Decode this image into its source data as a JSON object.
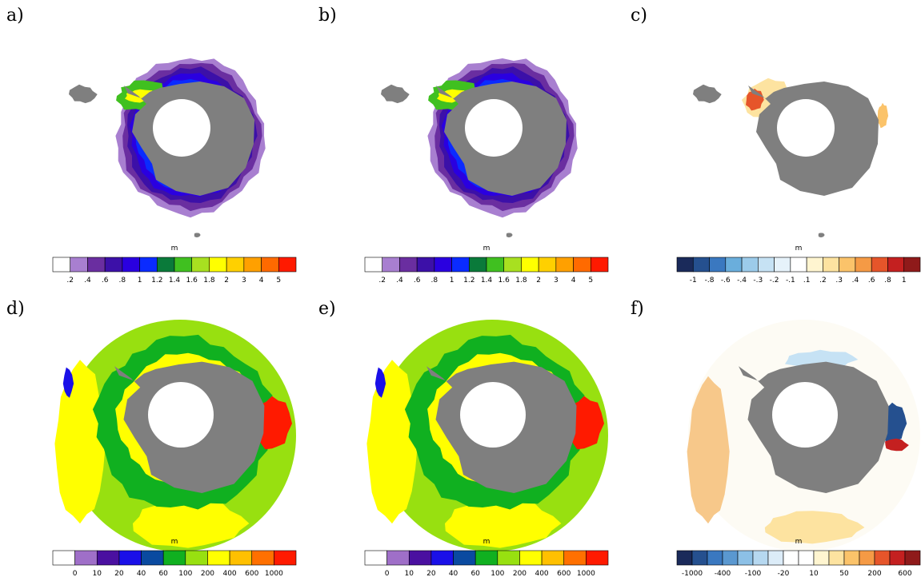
{
  "panels": [
    {
      "label": "a)",
      "colorbar": {
        "unit": "m",
        "labels": [
          ".2",
          ".4",
          ".6",
          ".8",
          "1",
          "1.2",
          "1.4",
          "1.6",
          "1.8",
          "2",
          "3",
          "4",
          "5"
        ],
        "colors": [
          "#ffffff",
          "#a87fd0",
          "#6a2ea0",
          "#3c10a8",
          "#2a00e0",
          "#0a2bff",
          "#0a7a3a",
          "#40c020",
          "#a8e020",
          "#ffff00",
          "#ffd000",
          "#ffa000",
          "#ff6a00",
          "#ff1a00"
        ]
      }
    },
    {
      "label": "b)",
      "colorbar": {
        "unit": "m",
        "labels": [
          ".2",
          ".4",
          ".6",
          ".8",
          "1",
          "1.2",
          "1.4",
          "1.6",
          "1.8",
          "2",
          "3",
          "4",
          "5"
        ],
        "colors": [
          "#ffffff",
          "#a87fd0",
          "#6a2ea0",
          "#3c10a8",
          "#2a00e0",
          "#0a2bff",
          "#0a7a3a",
          "#40c020",
          "#a8e020",
          "#ffff00",
          "#ffd000",
          "#ffa000",
          "#ff6a00",
          "#ff1a00"
        ]
      }
    },
    {
      "label": "c)",
      "colorbar": {
        "unit": "m",
        "labels": [
          "-1",
          "-.8",
          "-.6",
          "-.4",
          "-.3",
          "-.2",
          "-.1",
          ".1",
          ".2",
          ".3",
          ".4",
          ".6",
          ".8",
          "1"
        ],
        "colors": [
          "#1a2a5a",
          "#25508f",
          "#3a78c0",
          "#6aaedc",
          "#9ccbea",
          "#c6e2f4",
          "#e6f2fa",
          "#ffffff",
          "#fff5d0",
          "#fde3a0",
          "#fbc36a",
          "#f59a45",
          "#e6552a",
          "#c42020",
          "#8f1a1a"
        ]
      }
    },
    {
      "label": "d)",
      "colorbar": {
        "unit": "m",
        "labels": [
          "0",
          "10",
          "20",
          "40",
          "60",
          "100",
          "200",
          "400",
          "600",
          "1000"
        ],
        "colors": [
          "#ffffff",
          "#9f6fc8",
          "#4a10a0",
          "#1a10e8",
          "#0a4aa0",
          "#10b020",
          "#98e010",
          "#ffff00",
          "#ffc000",
          "#ff7000",
          "#ff1a00"
        ]
      }
    },
    {
      "label": "e)",
      "colorbar": {
        "unit": "m",
        "labels": [
          "0",
          "10",
          "20",
          "40",
          "60",
          "100",
          "200",
          "400",
          "600",
          "1000"
        ],
        "colors": [
          "#ffffff",
          "#9f6fc8",
          "#4a10a0",
          "#1a10e8",
          "#0a4aa0",
          "#10b020",
          "#98e010",
          "#ffff00",
          "#ffc000",
          "#ff7000",
          "#ff1a00"
        ]
      }
    },
    {
      "label": "f)",
      "colorbar": {
        "unit": "m",
        "labels": [
          "-1000",
          "-400",
          "-100",
          "-20",
          "10",
          "50",
          "200",
          "600"
        ],
        "colors": [
          "#1a2a5a",
          "#25508f",
          "#3a78c0",
          "#5a98d0",
          "#8cc0e6",
          "#b6d8f0",
          "#dcecf8",
          "#ffffff",
          "#ffffff",
          "#fff5d0",
          "#fde3a0",
          "#fbc36a",
          "#f59a45",
          "#e6552a",
          "#c42020",
          "#8f1a1a"
        ]
      }
    }
  ]
}
